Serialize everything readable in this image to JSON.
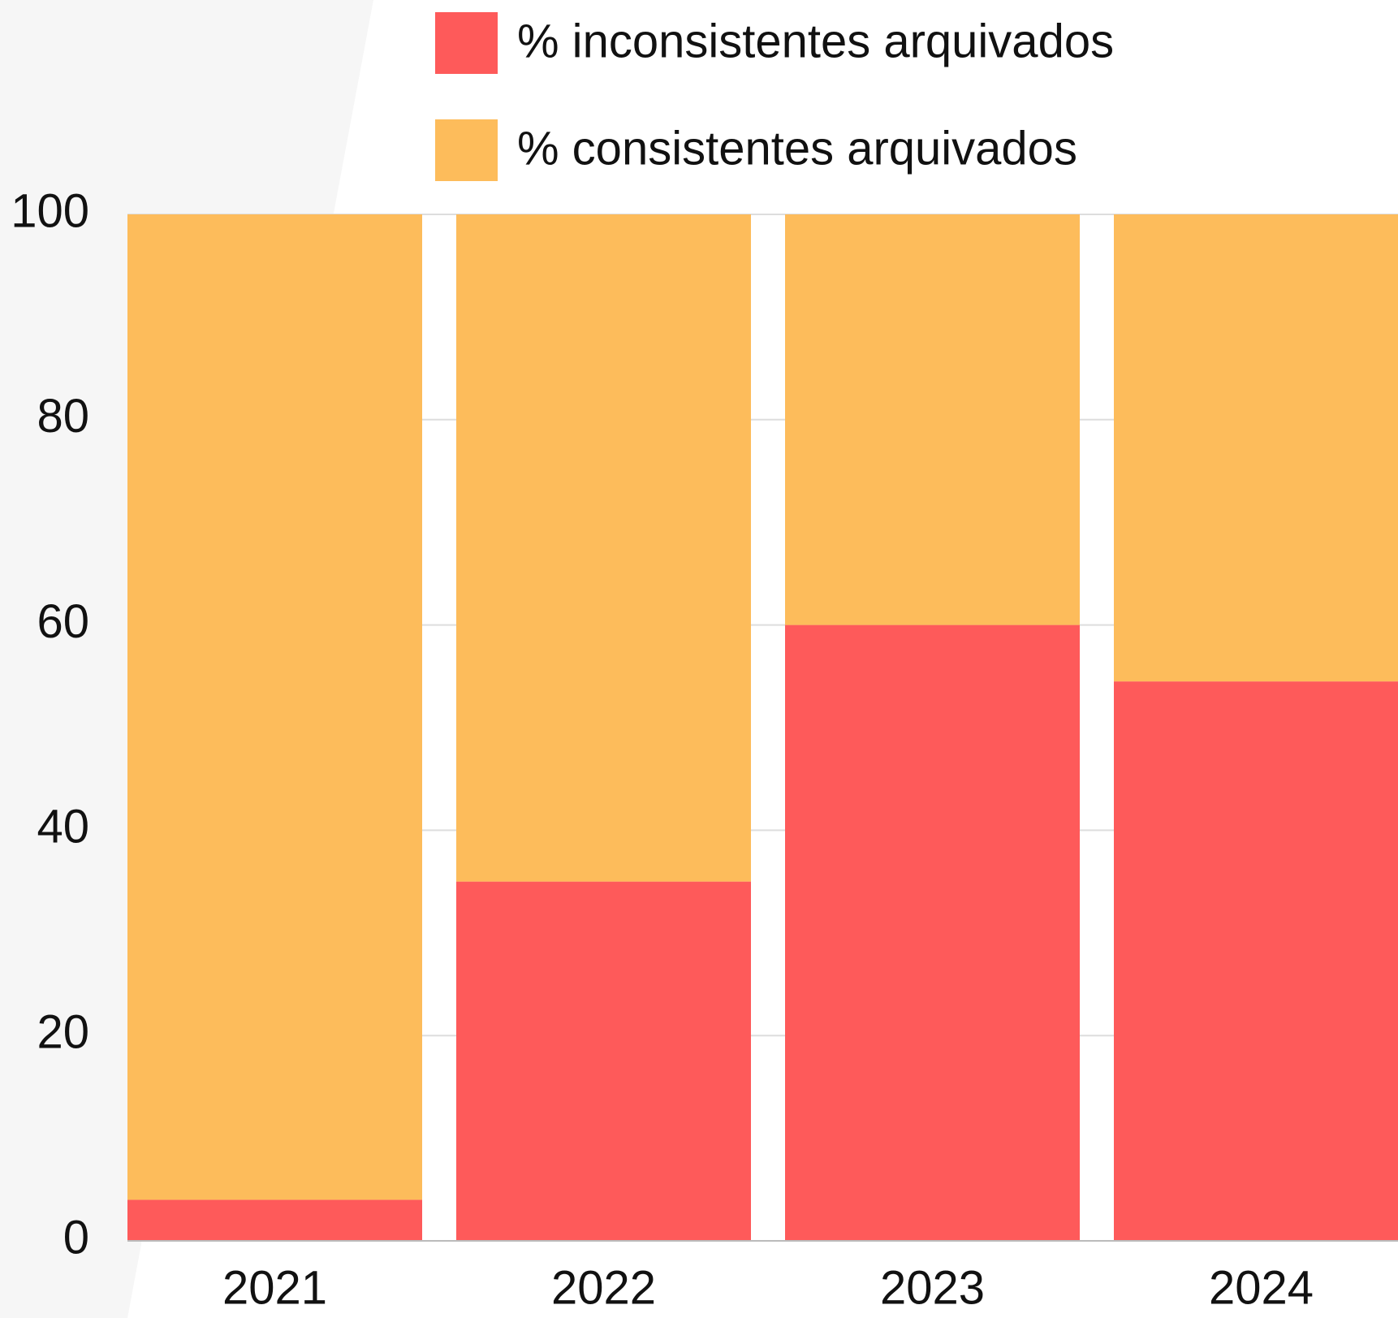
{
  "chart_data": {
    "type": "stacked_bar",
    "categories": [
      "2021",
      "2022",
      "2023",
      "2024"
    ],
    "series": [
      {
        "name": "% inconsistentes arquivados",
        "color": "#fe5a5a",
        "values": [
          4,
          35,
          60,
          54.5
        ]
      },
      {
        "name": "% consistentes arquivados",
        "color": "#fdbc5b",
        "values": [
          96,
          65,
          40,
          45.5
        ]
      }
    ],
    "ylim": [
      0,
      100
    ],
    "yticks": [
      0,
      20,
      40,
      60,
      80,
      100
    ],
    "grid": true
  }
}
